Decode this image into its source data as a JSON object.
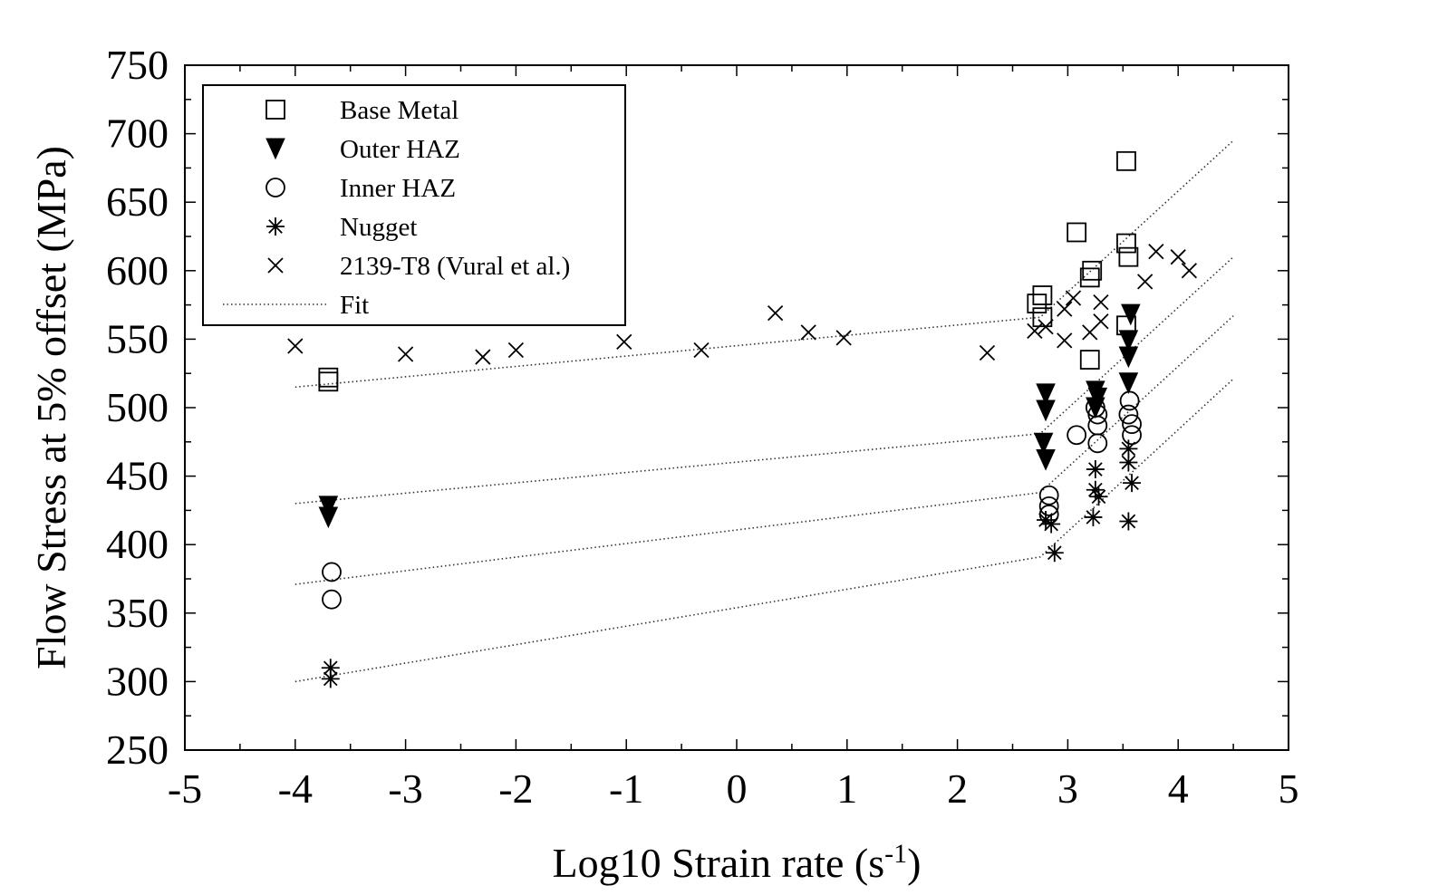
{
  "chart_data": {
    "type": "scatter",
    "title": "",
    "xlabel": "Log10 Strain rate (s",
    "xlabel_sup": "-1",
    "xlabel_end": ")",
    "ylabel": "Flow Stress at 5% offset (MPa)",
    "xlim": [
      -5,
      5
    ],
    "ylim": [
      250,
      750
    ],
    "x_ticks": [
      "-5",
      "-4",
      "-3",
      "-2",
      "-1",
      "0",
      "1",
      "2",
      "3",
      "4",
      "5"
    ],
    "y_ticks": [
      "250",
      "300",
      "350",
      "400",
      "450",
      "500",
      "550",
      "600",
      "650",
      "700",
      "750"
    ],
    "grid": false,
    "legend_position": "top-left",
    "series": [
      {
        "name": "Base Metal",
        "marker": "open-square",
        "points": [
          [
            -3.7,
            522
          ],
          [
            -3.7,
            519
          ],
          [
            2.72,
            576
          ],
          [
            2.77,
            582
          ],
          [
            2.77,
            566
          ],
          [
            3.08,
            628
          ],
          [
            3.2,
            595
          ],
          [
            3.22,
            600
          ],
          [
            3.2,
            535
          ],
          [
            3.53,
            680
          ],
          [
            3.53,
            620
          ],
          [
            3.55,
            610
          ],
          [
            3.53,
            560
          ]
        ]
      },
      {
        "name": "Outer HAZ",
        "marker": "filled-triangle-down",
        "points": [
          [
            -3.7,
            428
          ],
          [
            -3.7,
            420
          ],
          [
            2.8,
            510
          ],
          [
            2.8,
            498
          ],
          [
            2.78,
            474
          ],
          [
            2.8,
            462
          ],
          [
            3.25,
            512
          ],
          [
            3.27,
            507
          ],
          [
            3.25,
            500
          ],
          [
            3.57,
            568
          ],
          [
            3.55,
            549
          ],
          [
            3.55,
            537
          ],
          [
            3.55,
            518
          ]
        ]
      },
      {
        "name": "Inner HAZ",
        "marker": "open-circle",
        "points": [
          [
            -3.67,
            380
          ],
          [
            -3.67,
            360
          ],
          [
            2.83,
            436
          ],
          [
            2.83,
            428
          ],
          [
            2.83,
            422
          ],
          [
            3.08,
            480
          ],
          [
            3.25,
            500
          ],
          [
            3.27,
            495
          ],
          [
            3.27,
            487
          ],
          [
            3.27,
            474
          ],
          [
            3.56,
            505
          ],
          [
            3.55,
            495
          ],
          [
            3.58,
            488
          ],
          [
            3.58,
            480
          ]
        ]
      },
      {
        "name": "Nugget",
        "marker": "asterisk",
        "points": [
          [
            -3.68,
            310
          ],
          [
            -3.68,
            302
          ],
          [
            2.8,
            418
          ],
          [
            2.85,
            415
          ],
          [
            2.88,
            394
          ],
          [
            3.25,
            455
          ],
          [
            3.25,
            440
          ],
          [
            3.28,
            435
          ],
          [
            3.23,
            420
          ],
          [
            3.55,
            470
          ],
          [
            3.55,
            460
          ],
          [
            3.58,
            445
          ],
          [
            3.55,
            417
          ]
        ]
      },
      {
        "name": "2139-T8 (Vural et al.)",
        "marker": "x",
        "points": [
          [
            -4.0,
            545
          ],
          [
            -3.0,
            539
          ],
          [
            -2.3,
            537
          ],
          [
            -2.0,
            542
          ],
          [
            -1.02,
            548
          ],
          [
            -0.32,
            542
          ],
          [
            0.35,
            569
          ],
          [
            0.65,
            555
          ],
          [
            0.97,
            551
          ],
          [
            2.27,
            540
          ],
          [
            2.7,
            556
          ],
          [
            2.8,
            559
          ],
          [
            2.97,
            572
          ],
          [
            3.05,
            580
          ],
          [
            2.97,
            549
          ],
          [
            3.2,
            555
          ],
          [
            3.3,
            563
          ],
          [
            3.3,
            577
          ],
          [
            3.7,
            592
          ],
          [
            3.8,
            614
          ],
          [
            4.0,
            610
          ],
          [
            4.1,
            600
          ]
        ]
      }
    ],
    "fit": {
      "name": "Fit",
      "style": "dotted",
      "lines": [
        [
          [
            -4.0,
            515
          ],
          [
            2.75,
            566
          ],
          [
            4.5,
            695
          ]
        ],
        [
          [
            -4.0,
            430
          ],
          [
            2.75,
            481
          ],
          [
            4.5,
            610
          ]
        ],
        [
          [
            -4.0,
            371
          ],
          [
            2.75,
            438
          ],
          [
            4.5,
            567
          ]
        ],
        [
          [
            -4.0,
            300
          ],
          [
            2.75,
            391
          ],
          [
            4.5,
            521
          ]
        ]
      ]
    }
  }
}
